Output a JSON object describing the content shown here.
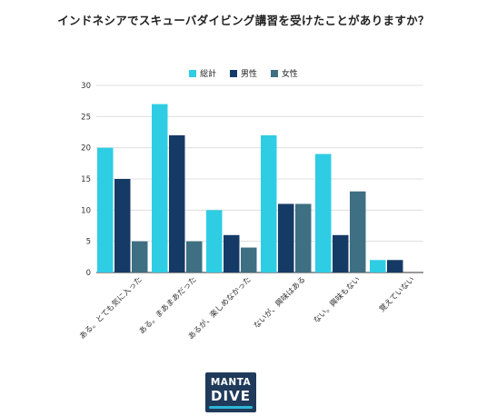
{
  "title": "インドネシアでスキューバダイビング講習を受けたことがありますか？",
  "logo": {
    "line1": "MANTA",
    "line2": "DIVE"
  },
  "colors": {
    "series1": "#2ecde4",
    "series2": "#163a66",
    "series3": "#3e6f82",
    "grid": "#d9d9d9",
    "axis": "#333333"
  },
  "chart_data": {
    "type": "bar",
    "categories": [
      "ある。とても気に入った",
      "ある。まあまあだった",
      "あるが、楽しめなかった",
      "ないが、興味はある",
      "ない。興味もない",
      "覚えていない"
    ],
    "series": [
      {
        "name": "総計",
        "values": [
          20,
          27,
          10,
          22,
          19,
          2
        ]
      },
      {
        "name": "男性",
        "values": [
          15,
          22,
          6,
          11,
          6,
          2
        ]
      },
      {
        "name": "女性",
        "values": [
          5,
          5,
          4,
          11,
          13,
          0
        ]
      }
    ],
    "ylim": [
      0,
      30
    ],
    "yticks": [
      0,
      5,
      10,
      15,
      20,
      25,
      30
    ],
    "grid": true,
    "legend": "top-center",
    "xlabel": "",
    "ylabel": ""
  }
}
